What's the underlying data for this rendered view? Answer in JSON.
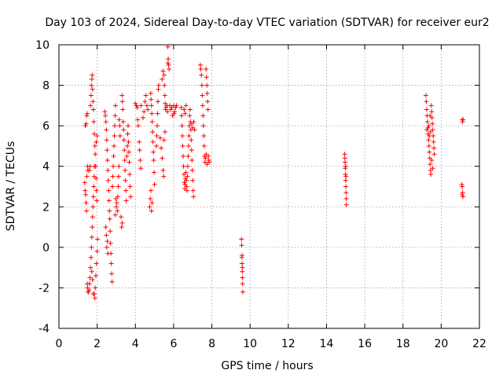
{
  "chart_data": {
    "type": "scatter",
    "title": "Day 103 of 2024, Sidereal Day-to-day VTEC variation (SDTVAR) for receiver eur2",
    "xlabel": "GPS time / hours",
    "ylabel": "SDTVAR / TECUs",
    "xlim": [
      0,
      22
    ],
    "ylim": [
      -4,
      10
    ],
    "x_ticks": [
      0,
      2,
      4,
      6,
      8,
      10,
      12,
      14,
      16,
      18,
      20,
      22
    ],
    "y_ticks": [
      -4,
      -2,
      0,
      2,
      4,
      6,
      8,
      10
    ],
    "grid": true,
    "marker": "+",
    "colors": {
      "series": "#ff0000",
      "grid": "#a0a0a0",
      "axis": "#000000"
    },
    "series": [
      {
        "name": "SDTVAR",
        "points": [
          [
            1.38,
            6.0
          ],
          [
            1.42,
            6.1
          ],
          [
            1.45,
            6.5
          ],
          [
            1.48,
            6.6
          ],
          [
            1.35,
            3.2
          ],
          [
            1.37,
            2.8
          ],
          [
            1.4,
            2.6
          ],
          [
            1.42,
            2.2
          ],
          [
            1.44,
            1.8
          ],
          [
            1.46,
            3.5
          ],
          [
            1.5,
            4.0
          ],
          [
            1.52,
            3.8
          ],
          [
            1.48,
            -1.8
          ],
          [
            1.5,
            -2.0
          ],
          [
            1.52,
            -2.2
          ],
          [
            1.55,
            -2.2
          ],
          [
            1.58,
            -2.1
          ],
          [
            1.6,
            -1.8
          ],
          [
            1.62,
            -1.5
          ],
          [
            1.65,
            -1.0
          ],
          [
            1.68,
            -0.5
          ],
          [
            1.7,
            0.0
          ],
          [
            1.72,
            0.5
          ],
          [
            1.74,
            1.0
          ],
          [
            1.76,
            1.5
          ],
          [
            1.78,
            2.0
          ],
          [
            1.8,
            2.5
          ],
          [
            1.82,
            3.0
          ],
          [
            1.84,
            3.5
          ],
          [
            1.86,
            4.0
          ],
          [
            1.65,
            7.0
          ],
          [
            1.68,
            7.5
          ],
          [
            1.7,
            8.0
          ],
          [
            1.72,
            8.3
          ],
          [
            1.74,
            8.5
          ],
          [
            1.76,
            7.8
          ],
          [
            1.78,
            7.2
          ],
          [
            1.8,
            6.8
          ],
          [
            1.82,
            6.2
          ],
          [
            1.85,
            5.6
          ],
          [
            1.88,
            5.0
          ],
          [
            1.9,
            4.6
          ],
          [
            1.92,
            4.0
          ],
          [
            1.94,
            3.4
          ],
          [
            1.96,
            2.8
          ],
          [
            1.98,
            2.3
          ],
          [
            1.85,
            -2.3
          ],
          [
            1.88,
            -2.5
          ],
          [
            1.9,
            -2.0
          ],
          [
            1.93,
            -1.4
          ],
          [
            1.96,
            -0.8
          ],
          [
            2.0,
            -0.2
          ],
          [
            2.02,
            0.4
          ],
          [
            1.72,
            -1.2
          ],
          [
            1.76,
            -1.6
          ],
          [
            1.8,
            -2.3
          ],
          [
            1.6,
            3.8
          ],
          [
            1.63,
            4.0
          ],
          [
            2.0,
            5.5
          ],
          [
            1.95,
            5.2
          ],
          [
            2.4,
            6.7
          ],
          [
            2.43,
            6.5
          ],
          [
            2.46,
            6.2
          ],
          [
            2.48,
            5.8
          ],
          [
            2.5,
            5.3
          ],
          [
            2.52,
            4.8
          ],
          [
            2.54,
            4.3
          ],
          [
            2.56,
            3.8
          ],
          [
            2.58,
            3.3
          ],
          [
            2.6,
            2.8
          ],
          [
            2.62,
            2.3
          ],
          [
            2.64,
            1.8
          ],
          [
            2.66,
            1.4
          ],
          [
            2.68,
            0.8
          ],
          [
            2.7,
            0.2
          ],
          [
            2.72,
            -0.3
          ],
          [
            2.74,
            -0.8
          ],
          [
            2.76,
            -1.3
          ],
          [
            2.78,
            -1.7
          ],
          [
            2.5,
            0.0
          ],
          [
            2.53,
            0.3
          ],
          [
            2.56,
            -0.3
          ],
          [
            2.45,
            1.0
          ],
          [
            2.48,
            0.6
          ],
          [
            2.8,
            3.0
          ],
          [
            2.82,
            3.5
          ],
          [
            2.84,
            4.0
          ],
          [
            2.86,
            4.5
          ],
          [
            2.88,
            5.0
          ],
          [
            2.9,
            5.5
          ],
          [
            2.92,
            6.0
          ],
          [
            2.94,
            6.5
          ],
          [
            2.96,
            7.0
          ],
          [
            3.0,
            2.0
          ],
          [
            3.03,
            2.2
          ],
          [
            3.06,
            1.8
          ],
          [
            3.08,
            2.5
          ],
          [
            3.1,
            3.0
          ],
          [
            3.12,
            3.5
          ],
          [
            3.14,
            4.0
          ],
          [
            2.95,
            1.6
          ],
          [
            2.98,
            2.4
          ],
          [
            3.3,
            7.5
          ],
          [
            3.32,
            7.2
          ],
          [
            3.34,
            6.8
          ],
          [
            3.36,
            6.2
          ],
          [
            3.38,
            5.8
          ],
          [
            3.4,
            5.3
          ],
          [
            3.42,
            4.8
          ],
          [
            3.44,
            4.3
          ],
          [
            3.46,
            3.8
          ],
          [
            3.48,
            3.3
          ],
          [
            3.5,
            2.8
          ],
          [
            3.52,
            2.3
          ],
          [
            3.25,
            1.5
          ],
          [
            3.28,
            1.0
          ],
          [
            3.31,
            1.2
          ],
          [
            3.55,
            4.5
          ],
          [
            3.58,
            5.0
          ],
          [
            3.6,
            5.6
          ],
          [
            3.62,
            6.0
          ],
          [
            3.64,
            5.2
          ],
          [
            3.66,
            4.7
          ],
          [
            3.68,
            4.2
          ],
          [
            3.7,
            3.6
          ],
          [
            3.72,
            3.0
          ],
          [
            3.75,
            2.5
          ],
          [
            3.15,
            6.3
          ],
          [
            3.18,
            6.0
          ],
          [
            3.2,
            5.5
          ],
          [
            4.0,
            7.1
          ],
          [
            4.05,
            7.0
          ],
          [
            4.1,
            6.9
          ],
          [
            4.12,
            6.3
          ],
          [
            4.15,
            6.0
          ],
          [
            4.2,
            5.2
          ],
          [
            4.22,
            4.8
          ],
          [
            4.25,
            4.3
          ],
          [
            4.28,
            3.9
          ],
          [
            4.3,
            7.0
          ],
          [
            4.4,
            6.4
          ],
          [
            4.45,
            6.7
          ],
          [
            4.5,
            7.2
          ],
          [
            4.55,
            7.5
          ],
          [
            4.6,
            7.0
          ],
          [
            4.65,
            6.8
          ],
          [
            4.8,
            7.6
          ],
          [
            4.82,
            7.3
          ],
          [
            4.84,
            7.0
          ],
          [
            4.86,
            6.6
          ],
          [
            4.88,
            6.2
          ],
          [
            4.9,
            5.7
          ],
          [
            4.92,
            5.2
          ],
          [
            4.94,
            4.7
          ],
          [
            4.96,
            4.3
          ],
          [
            4.98,
            3.7
          ],
          [
            5.0,
            3.1
          ],
          [
            4.75,
            2.0
          ],
          [
            4.78,
            2.4
          ],
          [
            4.81,
            2.8
          ],
          [
            4.84,
            1.8
          ],
          [
            4.87,
            2.2
          ],
          [
            5.1,
            5.0
          ],
          [
            5.12,
            5.5
          ],
          [
            5.14,
            6.0
          ],
          [
            5.16,
            6.6
          ],
          [
            5.18,
            7.2
          ],
          [
            5.2,
            7.8
          ],
          [
            5.22,
            8.0
          ],
          [
            5.3,
            5.4
          ],
          [
            5.35,
            4.9
          ],
          [
            5.4,
            4.4
          ],
          [
            5.45,
            3.8
          ],
          [
            5.48,
            3.5
          ],
          [
            5.5,
            5.3
          ],
          [
            5.55,
            5.7
          ],
          [
            5.4,
            8.3
          ],
          [
            5.45,
            8.7
          ],
          [
            5.5,
            8.5
          ],
          [
            5.52,
            8.0
          ],
          [
            5.54,
            7.5
          ],
          [
            5.56,
            7.1
          ],
          [
            5.58,
            6.8
          ],
          [
            5.6,
            6.9
          ],
          [
            5.7,
            9.1
          ],
          [
            5.72,
            9.3
          ],
          [
            5.74,
            9.0
          ],
          [
            5.76,
            8.8
          ],
          [
            5.7,
            9.9
          ],
          [
            5.65,
            7.0
          ],
          [
            5.68,
            6.7
          ],
          [
            5.8,
            7.0
          ],
          [
            5.85,
            6.8
          ],
          [
            5.9,
            6.9
          ],
          [
            6.0,
            7.0
          ],
          [
            6.05,
            6.7
          ],
          [
            6.1,
            6.9
          ],
          [
            6.15,
            7.0
          ],
          [
            5.95,
            6.5
          ],
          [
            6.02,
            6.6
          ],
          [
            6.4,
            6.9
          ],
          [
            6.42,
            6.5
          ],
          [
            6.44,
            6.0
          ],
          [
            6.46,
            5.5
          ],
          [
            6.48,
            5.0
          ],
          [
            6.5,
            4.5
          ],
          [
            6.52,
            4.0
          ],
          [
            6.54,
            3.6
          ],
          [
            6.56,
            3.2
          ],
          [
            6.58,
            2.9
          ],
          [
            6.6,
            3.1
          ],
          [
            6.62,
            3.4
          ],
          [
            6.64,
            3.7
          ],
          [
            6.66,
            3.3
          ],
          [
            6.68,
            3.0
          ],
          [
            6.7,
            2.8
          ],
          [
            6.72,
            3.5
          ],
          [
            6.74,
            4.0
          ],
          [
            6.76,
            4.5
          ],
          [
            6.78,
            5.0
          ],
          [
            6.8,
            5.5
          ],
          [
            6.82,
            6.0
          ],
          [
            6.84,
            6.5
          ],
          [
            6.86,
            6.8
          ],
          [
            6.88,
            6.2
          ],
          [
            6.9,
            5.8
          ],
          [
            6.92,
            5.3
          ],
          [
            6.94,
            4.8
          ],
          [
            6.96,
            4.3
          ],
          [
            6.98,
            3.8
          ],
          [
            7.0,
            3.3
          ],
          [
            7.02,
            2.8
          ],
          [
            7.04,
            2.5
          ],
          [
            6.55,
            6.8
          ],
          [
            6.6,
            6.6
          ],
          [
            6.65,
            7.0
          ],
          [
            6.95,
            6.1
          ],
          [
            7.0,
            5.9
          ],
          [
            7.05,
            6.2
          ],
          [
            7.1,
            5.8
          ],
          [
            7.4,
            9.0
          ],
          [
            7.42,
            8.8
          ],
          [
            7.45,
            8.5
          ],
          [
            7.48,
            8.0
          ],
          [
            7.5,
            7.5
          ],
          [
            7.52,
            7.0
          ],
          [
            7.54,
            6.5
          ],
          [
            7.56,
            6.0
          ],
          [
            7.58,
            5.5
          ],
          [
            7.6,
            5.0
          ],
          [
            7.62,
            4.5
          ],
          [
            7.64,
            4.2
          ],
          [
            7.66,
            4.4
          ],
          [
            7.7,
            8.8
          ],
          [
            7.72,
            8.4
          ],
          [
            7.74,
            8.0
          ],
          [
            7.76,
            7.6
          ],
          [
            7.78,
            7.2
          ],
          [
            7.8,
            6.8
          ],
          [
            7.82,
            4.5
          ],
          [
            7.84,
            4.3
          ],
          [
            7.86,
            4.2
          ],
          [
            7.7,
            4.6
          ],
          [
            7.75,
            4.1
          ],
          [
            9.55,
            0.4
          ],
          [
            9.56,
            0.1
          ],
          [
            9.57,
            -0.5
          ],
          [
            9.58,
            -0.8
          ],
          [
            9.59,
            -1.2
          ],
          [
            9.6,
            -1.5
          ],
          [
            9.61,
            -1.8
          ],
          [
            9.62,
            -2.2
          ],
          [
            9.58,
            -0.4
          ],
          [
            9.6,
            -1.0
          ],
          [
            14.95,
            4.6
          ],
          [
            14.96,
            4.4
          ],
          [
            14.97,
            4.2
          ],
          [
            14.98,
            3.9
          ],
          [
            14.99,
            3.6
          ],
          [
            15.0,
            3.3
          ],
          [
            15.01,
            3.0
          ],
          [
            15.02,
            2.7
          ],
          [
            15.03,
            2.4
          ],
          [
            15.04,
            2.1
          ],
          [
            15.0,
            4.0
          ],
          [
            15.02,
            3.5
          ],
          [
            19.2,
            7.5
          ],
          [
            19.22,
            7.2
          ],
          [
            19.24,
            6.8
          ],
          [
            19.26,
            6.5
          ],
          [
            19.28,
            6.2
          ],
          [
            19.3,
            5.9
          ],
          [
            19.32,
            5.6
          ],
          [
            19.34,
            5.3
          ],
          [
            19.36,
            5.0
          ],
          [
            19.38,
            4.7
          ],
          [
            19.4,
            4.4
          ],
          [
            19.42,
            4.1
          ],
          [
            19.44,
            3.8
          ],
          [
            19.46,
            3.6
          ],
          [
            19.48,
            7.0
          ],
          [
            19.5,
            6.7
          ],
          [
            19.52,
            6.4
          ],
          [
            19.54,
            6.1
          ],
          [
            19.56,
            5.8
          ],
          [
            19.58,
            5.5
          ],
          [
            19.6,
            5.2
          ],
          [
            19.62,
            4.9
          ],
          [
            19.64,
            4.6
          ],
          [
            19.35,
            6.0
          ],
          [
            19.38,
            5.5
          ],
          [
            19.42,
            6.5
          ],
          [
            19.45,
            5.7
          ],
          [
            19.5,
            4.3
          ],
          [
            19.55,
            3.9
          ],
          [
            19.25,
            5.8
          ],
          [
            21.1,
            6.3
          ],
          [
            21.12,
            6.2
          ],
          [
            21.14,
            6.3
          ],
          [
            21.08,
            3.1
          ],
          [
            21.1,
            3.0
          ],
          [
            21.12,
            2.7
          ],
          [
            21.14,
            2.5
          ],
          [
            21.1,
            2.6
          ]
        ]
      }
    ]
  }
}
